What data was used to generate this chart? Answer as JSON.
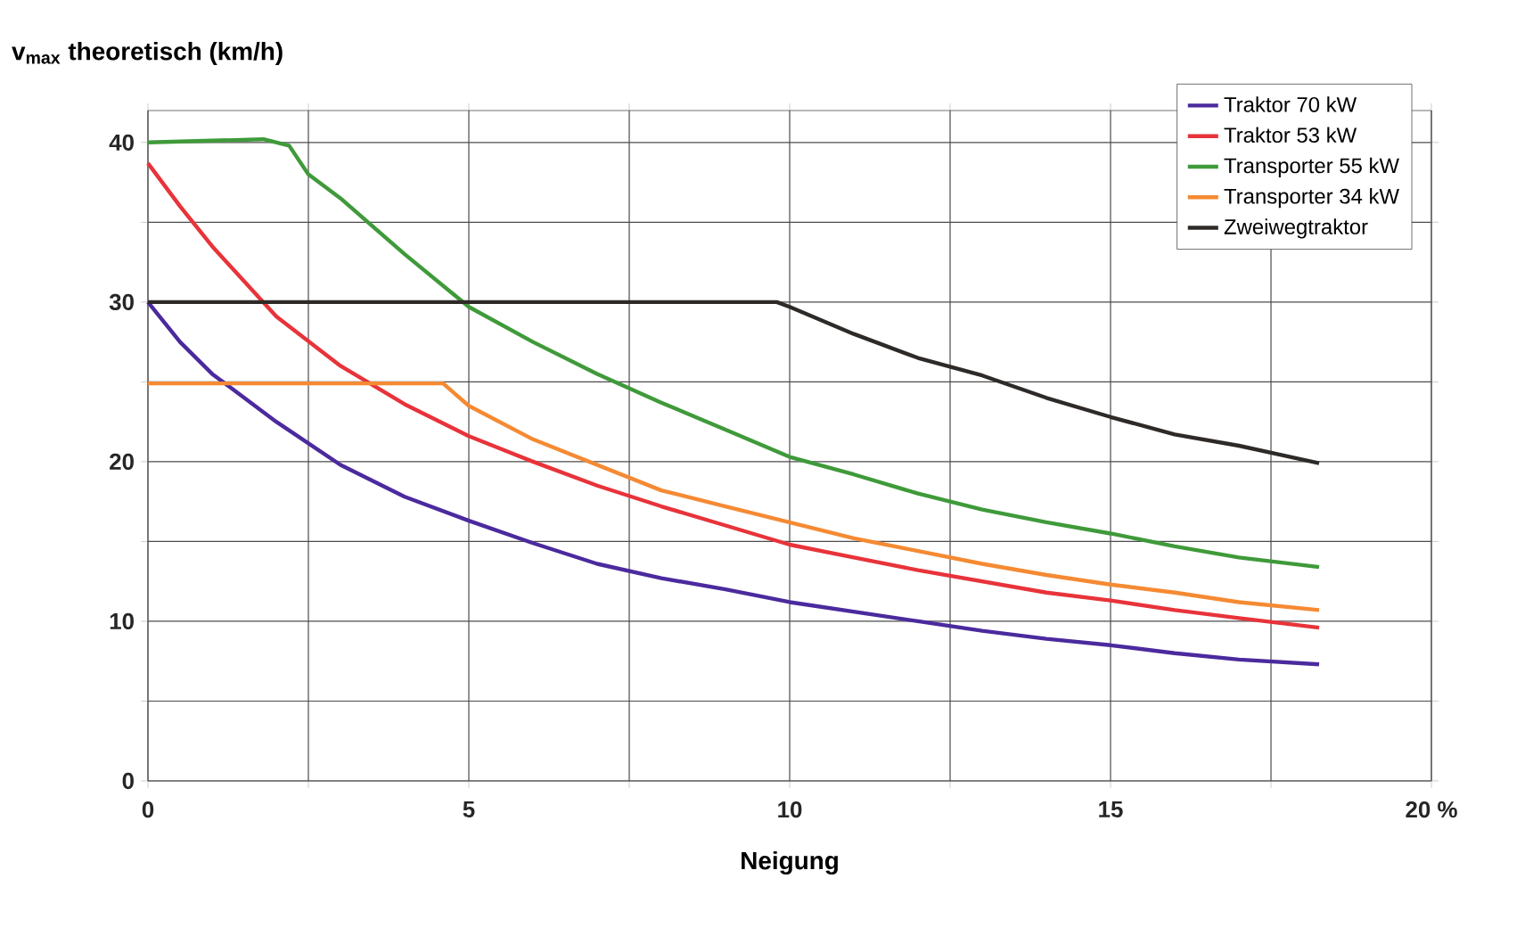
{
  "chart_data": {
    "type": "line",
    "ylabel": "v$_{max}$ theoretisch (km/h)",
    "xlabel": "Neigung",
    "xlim": [
      0,
      20
    ],
    "ylim": [
      0,
      42
    ],
    "xticks": [
      0,
      {
        "value": 2.5,
        "label": null
      },
      5,
      {
        "value": 7.5,
        "label": null
      },
      10,
      {
        "value": 12.5,
        "label": null
      },
      15,
      {
        "value": 17.5,
        "label": null
      },
      {
        "value": 20,
        "label": "20 %"
      }
    ],
    "yticks": [
      0,
      {
        "value": 5,
        "label": null
      },
      10,
      {
        "value": 15,
        "label": null
      },
      20,
      {
        "value": 25,
        "label": null
      },
      30,
      {
        "value": 35,
        "label": null
      },
      40
    ],
    "grid": true,
    "legend": "top right",
    "marker": "none",
    "line_style": "solid",
    "series": [
      {
        "name": "Traktor 70 kW",
        "color": "#4b2a9e",
        "x": [
          0,
          0.5,
          1,
          2,
          3,
          4,
          5,
          6,
          7,
          8,
          9,
          10,
          11,
          12,
          13,
          14,
          15,
          16,
          17,
          18.25
        ],
        "values": [
          30,
          27.5,
          25.5,
          22.5,
          19.8,
          17.8,
          16.3,
          14.9,
          13.6,
          12.7,
          12,
          11.2,
          10.6,
          10,
          9.4,
          8.9,
          8.5,
          8,
          7.6,
          7.3
        ]
      },
      {
        "name": "Traktor 53 kW",
        "color": "#e8333a",
        "x": [
          0,
          0.5,
          1,
          1.5,
          2,
          3,
          4,
          5,
          6,
          7,
          8,
          9,
          10,
          11,
          12,
          13,
          14,
          15,
          16,
          17,
          18.25
        ],
        "values": [
          38.7,
          36,
          33.5,
          31.3,
          29.1,
          26,
          23.6,
          21.6,
          20,
          18.5,
          17.2,
          16,
          14.8,
          14,
          13.2,
          12.5,
          11.8,
          11.3,
          10.7,
          10.2,
          9.6
        ]
      },
      {
        "name": "Transporter 55 kW",
        "color": "#3f9a3a",
        "x": [
          0,
          1.8,
          2.2,
          2.5,
          3,
          4,
          5,
          6,
          7,
          8,
          9,
          10,
          11,
          12,
          13,
          14,
          15,
          16,
          17,
          18.25
        ],
        "values": [
          40,
          40.2,
          39.8,
          38,
          36.5,
          33,
          29.7,
          27.5,
          25.5,
          23.7,
          22,
          20.3,
          19.2,
          18,
          17,
          16.2,
          15.5,
          14.7,
          14,
          13.4
        ]
      },
      {
        "name": "Transporter 34 kW",
        "color": "#f58a33",
        "x": [
          0,
          4.6,
          5,
          6,
          7,
          8,
          9,
          10,
          11,
          12,
          13,
          14,
          15,
          16,
          17,
          18.25
        ],
        "values": [
          24.9,
          24.9,
          23.5,
          21.4,
          19.8,
          18.2,
          17.2,
          16.2,
          15.2,
          14.4,
          13.6,
          12.9,
          12.3,
          11.8,
          11.2,
          10.7
        ]
      },
      {
        "name": "Zweiwegtraktor",
        "color": "#2e2a28",
        "x": [
          0,
          9.8,
          10,
          11,
          12,
          13,
          14,
          15,
          16,
          17,
          18.25
        ],
        "values": [
          30,
          30,
          29.7,
          28,
          26.5,
          25.4,
          24,
          22.8,
          21.7,
          21,
          19.9
        ]
      }
    ]
  }
}
